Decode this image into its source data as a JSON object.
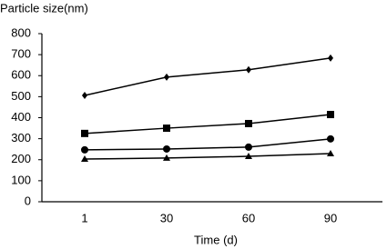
{
  "chart_data": {
    "type": "line",
    "y_label": "Particle size(nm)",
    "x_label": "Time (d)",
    "categories": [
      "1",
      "30",
      "60",
      "90"
    ],
    "series": [
      {
        "marker": "diamond",
        "color": "#000000",
        "values": [
          506,
          593,
          628,
          684
        ]
      },
      {
        "marker": "square",
        "color": "#000000",
        "values": [
          325,
          350,
          372,
          415
        ]
      },
      {
        "marker": "circle",
        "color": "#000000",
        "values": [
          247,
          251,
          260,
          299
        ]
      },
      {
        "marker": "triangle",
        "color": "#000000",
        "values": [
          203,
          208,
          216,
          229
        ]
      }
    ],
    "ylim": [
      0,
      800
    ],
    "yticks": [
      0,
      100,
      200,
      300,
      400,
      500,
      600,
      700,
      800
    ],
    "grid": false
  }
}
